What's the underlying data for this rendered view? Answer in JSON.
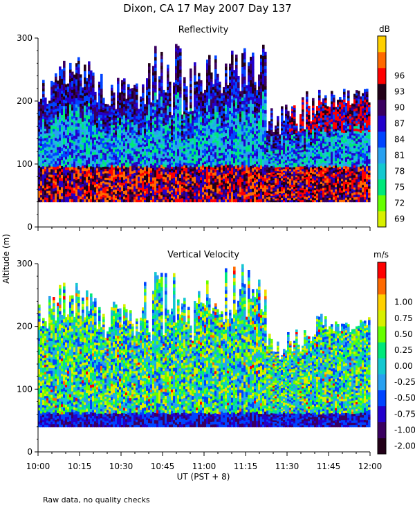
{
  "page_title": "Dixon, CA 17 May 2007  Day 137",
  "footnote": "Raw data, no quality checks",
  "chart_data": [
    {
      "type": "heatmap",
      "title": "Reflectivity",
      "ylabel": "Altitude (m)",
      "xlabel": "UT  (PST + 8)",
      "xlim": [
        "10:00",
        "12:00"
      ],
      "x_ticks": [
        "10:00",
        "10:15",
        "10:30",
        "10:45",
        "11:00",
        "11:15",
        "11:30",
        "11:45",
        "12:00"
      ],
      "ylim": [
        0,
        300
      ],
      "y_ticks": [
        0,
        100,
        200,
        300
      ],
      "data_altitude_range": [
        40,
        300
      ],
      "colorbar": {
        "unit": "dB",
        "ticks": [
          69,
          72,
          75,
          78,
          81,
          84,
          87,
          90,
          93,
          96
        ],
        "colors": [
          "#d8f000",
          "#66ff00",
          "#00e87a",
          "#14c8d0",
          "#28a0f0",
          "#0044ff",
          "#2200cc",
          "#3a0060",
          "#220018",
          "#ff0000",
          "#ff6a00",
          "#ffd000"
        ]
      }
    },
    {
      "type": "heatmap",
      "title": "Vertical Velocity",
      "ylabel": "Altitude (m)",
      "xlabel": "UT  (PST + 8)",
      "xlim": [
        "10:00",
        "12:00"
      ],
      "x_ticks": [
        "10:00",
        "10:15",
        "10:30",
        "10:45",
        "11:00",
        "11:15",
        "11:30",
        "11:45",
        "12:00"
      ],
      "ylim": [
        0,
        300
      ],
      "y_ticks": [
        0,
        100,
        200,
        300
      ],
      "data_altitude_range": [
        40,
        300
      ],
      "colorbar": {
        "unit": "m/s",
        "ticks": [
          "-2.00",
          "-1.00",
          "-0.75",
          "-0.50",
          "-0.25",
          "0.00",
          "0.25",
          "0.50",
          "0.75",
          "1.00"
        ],
        "colors": [
          "#220018",
          "#3a0060",
          "#2200cc",
          "#0044ff",
          "#28a0f0",
          "#14c8d0",
          "#00e87a",
          "#66ff00",
          "#d8f000",
          "#ffd000",
          "#ff6a00",
          "#ff0000"
        ]
      }
    }
  ]
}
